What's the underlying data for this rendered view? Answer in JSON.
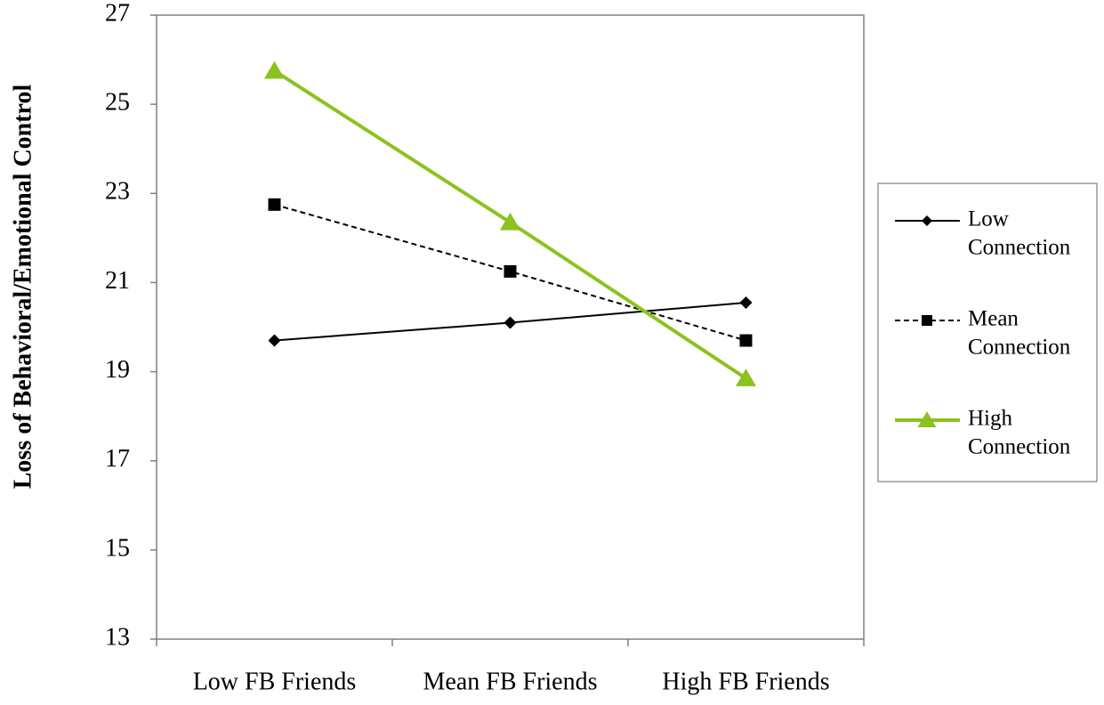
{
  "chart_data": {
    "type": "line",
    "categories": [
      "Low FB Friends",
      "Mean FB Friends",
      "High FB Friends"
    ],
    "ylabel": "Loss of Behavioral/Emotional Control",
    "xlabel": "",
    "ylim": [
      13,
      27
    ],
    "yticks": [
      13,
      15,
      17,
      19,
      21,
      23,
      25,
      27
    ],
    "legend_position": "right",
    "series": [
      {
        "name": "Low Connection",
        "legend_lines": [
          "Low",
          "Connection"
        ],
        "values": [
          19.7,
          20.1,
          20.55
        ],
        "color": "#000000",
        "marker": "diamond",
        "dashed": false
      },
      {
        "name": "Mean Connection",
        "legend_lines": [
          "Mean",
          "Connection"
        ],
        "values": [
          22.75,
          21.25,
          19.7
        ],
        "color": "#000000",
        "marker": "square",
        "dashed": true
      },
      {
        "name": "High Connection",
        "legend_lines": [
          "High",
          "Connection"
        ],
        "values": [
          25.75,
          22.35,
          18.85
        ],
        "color": "#8cc21e",
        "marker": "triangle",
        "dashed": false
      }
    ]
  }
}
